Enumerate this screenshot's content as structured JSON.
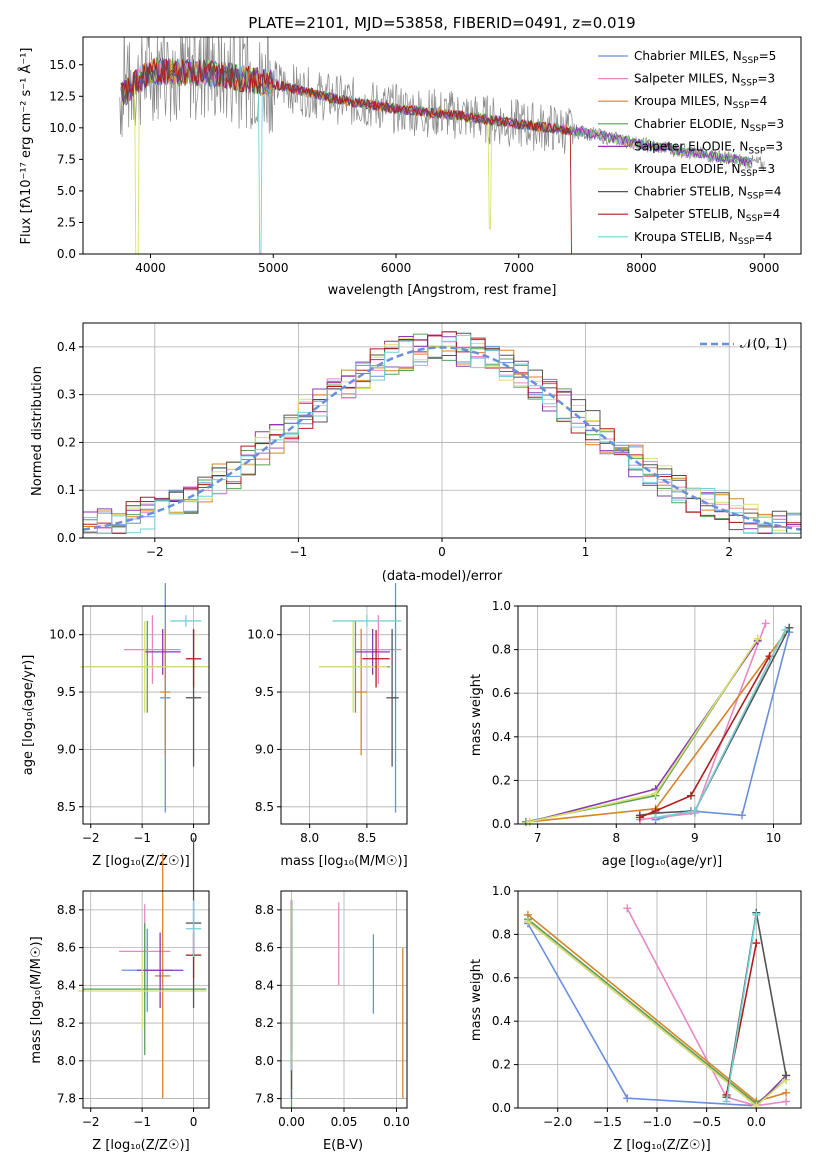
{
  "palette": [
    "#6a8fdb",
    "#e688c4",
    "#d4852a",
    "#5aa05a",
    "#8a3bb0",
    "#d8e26a",
    "#555555",
    "#b01e1e",
    "#74d2d6"
  ],
  "chart_data": [
    {
      "id": "spectrum",
      "type": "line",
      "title": "PLATE=2101, MJD=53858, FIBERID=0491, z=0.019",
      "xlabel": "wavelength [Angstrom, rest frame]",
      "ylabel": "Flux [fλ10⁻¹⁷ erg cm⁻² s⁻¹ Å⁻¹]",
      "xlim": [
        3450,
        9300
      ],
      "ylim": [
        0,
        17.2
      ],
      "xticks": [
        4000,
        5000,
        6000,
        7000,
        8000,
        9000
      ],
      "yticks": [
        0.0,
        2.5,
        5.0,
        7.5,
        10.0,
        12.5,
        15.0
      ],
      "legend_position": "upper-right",
      "data_trend": {
        "wavelength": [
          3750,
          4000,
          4500,
          5000,
          5500,
          6000,
          6500,
          7000,
          7500,
          8000,
          8500,
          9000
        ],
        "flux": [
          12.5,
          14.5,
          14.3,
          13.5,
          12.3,
          11.5,
          11.0,
          10.3,
          9.7,
          8.7,
          7.9,
          7.1
        ]
      },
      "series": [
        {
          "name": "Chabrier MILES, N_SSP=5",
          "label_main": "Chabrier MILES, N",
          "label_sub": "SSP",
          "label_tail": "=5"
        },
        {
          "name": "Salpeter MILES, N_SSP=3",
          "label_main": "Salpeter MILES, N",
          "label_sub": "SSP",
          "label_tail": "=3"
        },
        {
          "name": "Kroupa MILES, N_SSP=4",
          "label_main": "Kroupa MILES, N",
          "label_sub": "SSP",
          "label_tail": "=4"
        },
        {
          "name": "Chabrier ELODIE, N_SSP=3",
          "label_main": "Chabrier ELODIE, N",
          "label_sub": "SSP",
          "label_tail": "=3"
        },
        {
          "name": "Salpeter ELODIE, N_SSP=3",
          "label_main": "Salpeter ELODIE, N",
          "label_sub": "SSP",
          "label_tail": "=3"
        },
        {
          "name": "Kroupa ELODIE, N_SSP=3",
          "label_main": "Kroupa ELODIE, N",
          "label_sub": "SSP",
          "label_tail": "=3"
        },
        {
          "name": "Chabrier STELIB, N_SSP=4",
          "label_main": "Chabrier STELIB, N",
          "label_sub": "SSP",
          "label_tail": "=4"
        },
        {
          "name": "Salpeter STELIB, N_SSP=4",
          "label_main": "Salpeter STELIB, N",
          "label_sub": "SSP",
          "label_tail": "=4"
        },
        {
          "name": "Kroupa STELIB, N_SSP=4",
          "label_main": "Kroupa STELIB, N",
          "label_sub": "SSP",
          "label_tail": "=4"
        }
      ]
    },
    {
      "id": "residuals",
      "type": "histogram",
      "xlabel": "(data-model)/error",
      "ylabel": "Normed distribution",
      "xlim": [
        -2.5,
        2.5
      ],
      "ylim": [
        0,
        0.45
      ],
      "xticks": [
        -2,
        -1,
        0,
        1,
        2
      ],
      "yticks": [
        0.0,
        0.1,
        0.2,
        0.3,
        0.4
      ],
      "grid": true,
      "legend": "𝒩(0, 1)",
      "legend_position": "upper-right",
      "bin_width": 0.1
    },
    {
      "id": "age-vs-z",
      "type": "errorbar",
      "xlabel": "Z [log₁₀(Z/Z☉)]",
      "ylabel": "age  [log₁₀(age/yr)]",
      "xlim": [
        -2.15,
        0.3
      ],
      "ylim": [
        8.35,
        10.25
      ],
      "xticks": [
        -2,
        -1,
        0
      ],
      "yticks": [
        8.5,
        9.0,
        9.5,
        10.0
      ],
      "grid": true,
      "points": [
        {
          "x": -0.55,
          "y": 9.45,
          "xerr": 0.1,
          "yerr": 1.0
        },
        {
          "x": -0.8,
          "y": 9.87,
          "xerr": 0.55,
          "yerr": 0.3
        },
        {
          "x": -0.55,
          "y": 9.5,
          "xerr": 0.1,
          "yerr": 0.55
        },
        {
          "x": -0.9,
          "y": 9.72,
          "xerr": 1.2,
          "yerr": 0.4
        },
        {
          "x": -0.6,
          "y": 9.85,
          "xerr": 0.35,
          "yerr": 0.2
        },
        {
          "x": -0.95,
          "y": 9.72,
          "xerr": 1.25,
          "yerr": 0.4
        },
        {
          "x": 0.0,
          "y": 9.45,
          "xerr": 0.15,
          "yerr": 0.6
        },
        {
          "x": 0.0,
          "y": 9.79,
          "xerr": 0.15,
          "yerr": 0.25
        },
        {
          "x": -0.15,
          "y": 10.12,
          "xerr": 0.3,
          "yerr": 0.05
        }
      ]
    },
    {
      "id": "age-vs-mass",
      "type": "errorbar",
      "xlabel": "mass [log₁₀(M/M☉)]",
      "ylabel": "",
      "xlim": [
        7.75,
        8.85
      ],
      "ylim": [
        8.35,
        10.25
      ],
      "xticks": [
        8.0,
        8.5
      ],
      "yticks": [
        8.5,
        9.0,
        9.5,
        10.0
      ],
      "grid": true,
      "points": [
        {
          "x": 8.75,
          "y": 9.45,
          "xerr": 0.03,
          "yerr": 1.0
        },
        {
          "x": 8.6,
          "y": 9.87,
          "xerr": 0.2,
          "yerr": 0.3
        },
        {
          "x": 8.45,
          "y": 9.5,
          "xerr": 0.05,
          "yerr": 0.55
        },
        {
          "x": 8.4,
          "y": 9.72,
          "xerr": 0.3,
          "yerr": 0.4
        },
        {
          "x": 8.55,
          "y": 9.85,
          "xerr": 0.15,
          "yerr": 0.2
        },
        {
          "x": 8.38,
          "y": 9.72,
          "xerr": 0.3,
          "yerr": 0.4
        },
        {
          "x": 8.72,
          "y": 9.45,
          "xerr": 0.05,
          "yerr": 0.6
        },
        {
          "x": 8.58,
          "y": 9.79,
          "xerr": 0.12,
          "yerr": 0.25
        },
        {
          "x": 8.5,
          "y": 10.12,
          "xerr": 0.3,
          "yerr": 0.05
        }
      ]
    },
    {
      "id": "weight-vs-age",
      "type": "line",
      "xlabel": "age  [log₁₀(age/yr)]",
      "ylabel": "mass weight",
      "xlim": [
        6.75,
        10.35
      ],
      "ylim": [
        0,
        1.0
      ],
      "xticks": [
        7,
        8,
        9,
        10
      ],
      "yticks": [
        0.0,
        0.2,
        0.4,
        0.6,
        0.8,
        1.0
      ],
      "grid": true,
      "series": [
        {
          "x": [
            8.5,
            8.95,
            9.6,
            10.2
          ],
          "y": [
            0.02,
            0.06,
            0.04,
            0.88
          ]
        },
        {
          "x": [
            8.3,
            9.0,
            9.9
          ],
          "y": [
            0.02,
            0.05,
            0.92
          ]
        },
        {
          "x": [
            6.9,
            8.5,
            10.2
          ],
          "y": [
            0.01,
            0.07,
            0.9
          ]
        },
        {
          "x": [
            6.85,
            8.5,
            9.8
          ],
          "y": [
            0.01,
            0.13,
            0.85
          ]
        },
        {
          "x": [
            6.9,
            8.5,
            9.8
          ],
          "y": [
            0.01,
            0.16,
            0.84
          ]
        },
        {
          "x": [
            6.9,
            8.5,
            9.8
          ],
          "y": [
            0.01,
            0.14,
            0.85
          ]
        },
        {
          "x": [
            8.3,
            8.5,
            9.0,
            10.2
          ],
          "y": [
            0.04,
            0.05,
            0.06,
            0.9
          ]
        },
        {
          "x": [
            8.3,
            8.5,
            8.95,
            9.95
          ],
          "y": [
            0.03,
            0.06,
            0.13,
            0.77
          ]
        },
        {
          "x": [
            8.5,
            9.0,
            10.15
          ],
          "y": [
            0.03,
            0.06,
            0.89
          ]
        }
      ]
    },
    {
      "id": "mass-vs-z",
      "type": "errorbar",
      "xlabel": "Z [log₁₀(Z/Z☉)]",
      "ylabel": "mass [log₁₀(M/M☉)]",
      "xlim": [
        -2.15,
        0.3
      ],
      "ylim": [
        7.75,
        8.9
      ],
      "xticks": [
        -2,
        -1,
        0
      ],
      "yticks": [
        7.8,
        8.0,
        8.2,
        8.4,
        8.6,
        8.8
      ],
      "grid": true,
      "points": [
        {
          "x": -0.9,
          "y": 8.48,
          "xerr": 0.5,
          "yerr": 0.22
        },
        {
          "x": -0.95,
          "y": 8.58,
          "xerr": 0.5,
          "yerr": 0.25
        },
        {
          "x": -0.6,
          "y": 8.45,
          "xerr": 0.15,
          "yerr": 0.65
        },
        {
          "x": -0.95,
          "y": 8.38,
          "xerr": 1.2,
          "yerr": 0.35
        },
        {
          "x": -0.65,
          "y": 8.48,
          "xerr": 0.45,
          "yerr": 0.2
        },
        {
          "x": -1.0,
          "y": 8.37,
          "xerr": 1.25,
          "yerr": 0.2
        },
        {
          "x": 0.0,
          "y": 8.73,
          "xerr": 0.15,
          "yerr": 0.45
        },
        {
          "x": 0.0,
          "y": 8.56,
          "xerr": 0.15,
          "yerr": 0.12
        },
        {
          "x": 0.0,
          "y": 8.7,
          "xerr": 0.15,
          "yerr": 0.15
        }
      ]
    },
    {
      "id": "mass-vs-ebv",
      "type": "errorbar",
      "xlabel": "E(B-V)",
      "ylabel": "",
      "xlim": [
        -0.01,
        0.11
      ],
      "ylim": [
        7.75,
        8.9
      ],
      "xticks": [
        0.0,
        0.05,
        0.1
      ],
      "xtick_labels": [
        "0.00",
        "0.05",
        "0.10"
      ],
      "yticks": [
        7.8,
        8.0,
        8.2,
        8.4,
        8.6,
        8.8
      ],
      "grid": true,
      "points": [
        {
          "x": 0.078,
          "y": 8.46,
          "xerr": 0,
          "yerr": 0.21
        },
        {
          "x": 0.045,
          "y": 8.62,
          "xerr": 0,
          "yerr": 0.22
        },
        {
          "x": 0.106,
          "y": 8.2,
          "xerr": 0,
          "yerr": 0.4
        },
        {
          "x": 0.0,
          "y": 8.3,
          "xerr": 0,
          "yerr": 0.55
        },
        {
          "x": 0.0,
          "y": 8.25,
          "xerr": 0,
          "yerr": 0.45
        },
        {
          "x": 0.0,
          "y": 8.35,
          "xerr": 0,
          "yerr": 0.5
        },
        {
          "x": 0.0,
          "y": 8.35,
          "xerr": 0,
          "yerr": 0.5
        },
        {
          "x": 0.0,
          "y": 8.45,
          "xerr": 0,
          "yerr": 0.4
        },
        {
          "x": 0.0,
          "y": 8.4,
          "xerr": 0,
          "yerr": 0.45
        }
      ]
    },
    {
      "id": "weight-vs-z",
      "type": "line",
      "xlabel": "Z [log₁₀(Z/Z☉)]",
      "ylabel": "mass weight",
      "xlim": [
        -2.4,
        0.45
      ],
      "ylim": [
        0,
        1.0
      ],
      "xticks": [
        -2.0,
        -1.5,
        -1.0,
        -0.5,
        0.0
      ],
      "yticks": [
        0.0,
        0.2,
        0.4,
        0.6,
        0.8,
        1.0
      ],
      "grid": true,
      "series": [
        {
          "x": [
            -2.3,
            -1.3,
            0.0
          ],
          "y": [
            0.85,
            0.045,
            0.01
          ]
        },
        {
          "x": [
            -1.3,
            -0.3,
            0.0,
            0.3
          ],
          "y": [
            0.92,
            0.05,
            0.01,
            0.03
          ]
        },
        {
          "x": [
            -2.3,
            0.0,
            0.3
          ],
          "y": [
            0.89,
            0.03,
            0.07
          ]
        },
        {
          "x": [
            -2.3,
            0.0,
            0.3
          ],
          "y": [
            0.87,
            0.02,
            0.13
          ]
        },
        {
          "x": [
            -2.3,
            0.0,
            0.3
          ],
          "y": [
            0.86,
            0.01,
            0.15
          ]
        },
        {
          "x": [
            -2.3,
            0.0,
            0.3
          ],
          "y": [
            0.86,
            0.01,
            0.13
          ]
        },
        {
          "x": [
            -0.3,
            0.0,
            0.3
          ],
          "y": [
            0.05,
            0.9,
            0.15
          ]
        },
        {
          "x": [
            -0.3,
            0.0
          ],
          "y": [
            0.06,
            0.76
          ]
        },
        {
          "x": [
            -0.3,
            0.0
          ],
          "y": [
            0.03,
            0.89
          ]
        }
      ]
    }
  ]
}
